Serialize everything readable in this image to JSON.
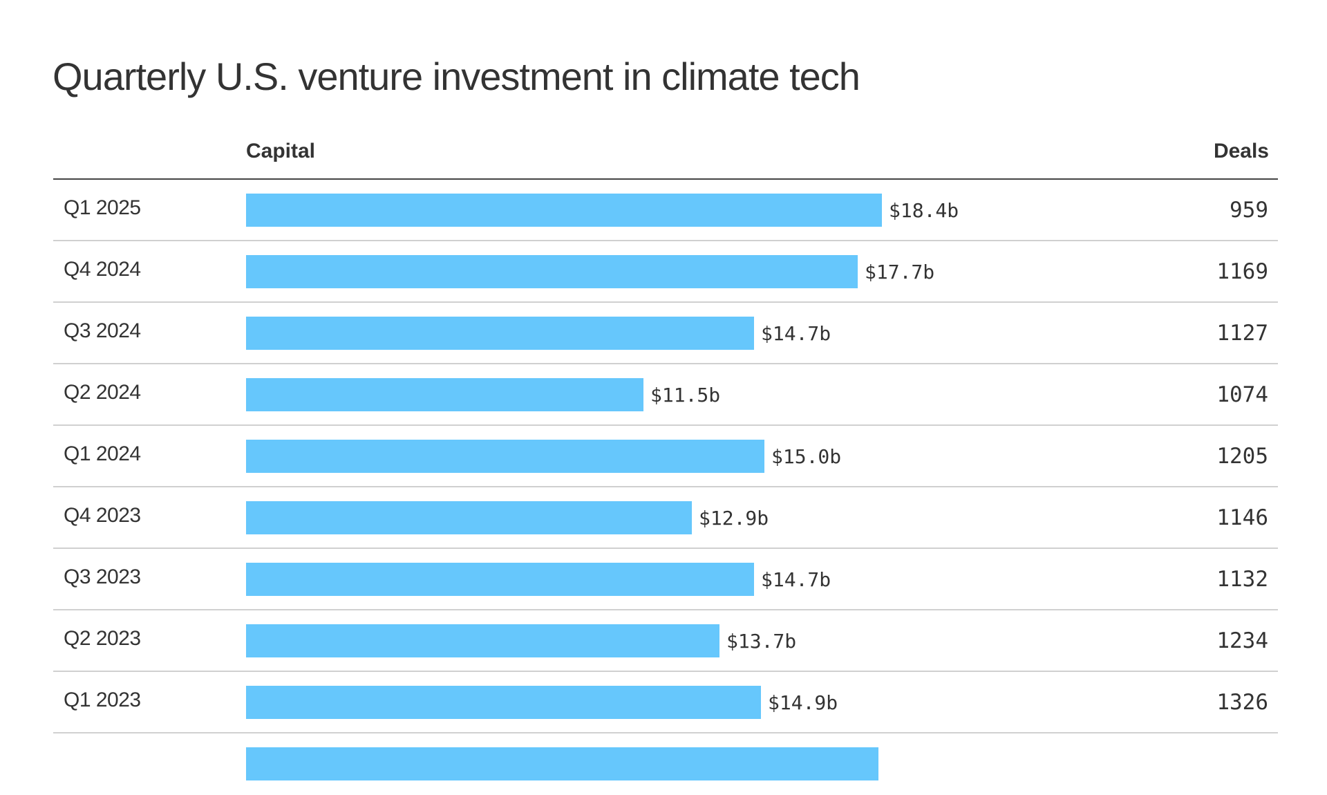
{
  "chart_data": {
    "type": "bar",
    "orientation": "horizontal",
    "title": "Quarterly U.S. venture investment in climate tech",
    "columns": {
      "capital": "Capital",
      "deals": "Deals"
    },
    "unit": "billion USD",
    "rows": [
      {
        "quarter": "Q1 2025",
        "capital": 18.4,
        "capital_label": "$18.4b",
        "deals": "959"
      },
      {
        "quarter": "Q4 2024",
        "capital": 17.7,
        "capital_label": "$17.7b",
        "deals": "1169"
      },
      {
        "quarter": "Q3 2024",
        "capital": 14.7,
        "capital_label": "$14.7b",
        "deals": "1127"
      },
      {
        "quarter": "Q2 2024",
        "capital": 11.5,
        "capital_label": "$11.5b",
        "deals": "1074"
      },
      {
        "quarter": "Q1 2024",
        "capital": 15.0,
        "capital_label": "$15.0b",
        "deals": "1205"
      },
      {
        "quarter": "Q4 2023",
        "capital": 12.9,
        "capital_label": "$12.9b",
        "deals": "1146"
      },
      {
        "quarter": "Q3 2023",
        "capital": 14.7,
        "capital_label": "$14.7b",
        "deals": "1132"
      },
      {
        "quarter": "Q2 2023",
        "capital": 13.7,
        "capital_label": "$13.7b",
        "deals": "1234"
      },
      {
        "quarter": "Q1 2023",
        "capital": 14.9,
        "capital_label": "$14.9b",
        "deals": "1326"
      }
    ],
    "partial_row_capital": 18.3,
    "bar_color": "#66c7fc",
    "grid": false
  }
}
